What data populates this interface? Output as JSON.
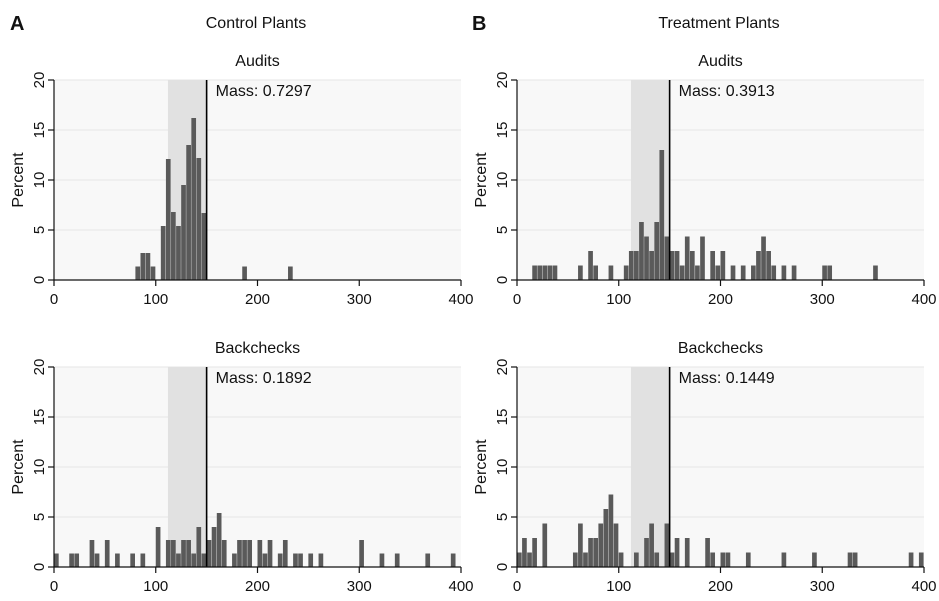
{
  "figure": {
    "columns": [
      {
        "letter": "A",
        "title": "Control Plants"
      },
      {
        "letter": "B",
        "title": "Treatment Plants"
      }
    ]
  },
  "colors": {
    "bar": "#5a5a5a",
    "band": "#e1e1e1",
    "plot_background": "#f8f8f8",
    "grid": "#e6e6e6",
    "axis": "#111111",
    "threshold_line": "#000000"
  },
  "chart_data": [
    {
      "type": "bar",
      "panel": "A",
      "title": "Audits",
      "annotation": "Mass: 0.7297",
      "ylabel": "Percent",
      "xlim": [
        0,
        400
      ],
      "ylim": [
        0,
        20
      ],
      "xticks": [
        0,
        100,
        200,
        300,
        400
      ],
      "yticks": [
        0,
        5,
        10,
        15,
        20
      ],
      "grid": true,
      "shaded_band": [
        112,
        150
      ],
      "threshold": 150,
      "bin_width": 5,
      "bins": [
        {
          "x": 80,
          "y": 1.35
        },
        {
          "x": 85,
          "y": 2.7
        },
        {
          "x": 90,
          "y": 2.7
        },
        {
          "x": 95,
          "y": 1.35
        },
        {
          "x": 105,
          "y": 5.4
        },
        {
          "x": 110,
          "y": 12.1
        },
        {
          "x": 115,
          "y": 6.8
        },
        {
          "x": 120,
          "y": 5.4
        },
        {
          "x": 125,
          "y": 9.5
        },
        {
          "x": 130,
          "y": 13.5
        },
        {
          "x": 135,
          "y": 16.2
        },
        {
          "x": 140,
          "y": 12.2
        },
        {
          "x": 145,
          "y": 6.7
        },
        {
          "x": 185,
          "y": 1.35
        },
        {
          "x": 230,
          "y": 1.35
        }
      ]
    },
    {
      "type": "bar",
      "panel": "B",
      "title": "Audits",
      "annotation": "Mass: 0.3913",
      "ylabel": "Percent",
      "xlim": [
        0,
        400
      ],
      "ylim": [
        0,
        20
      ],
      "xticks": [
        0,
        100,
        200,
        300,
        400
      ],
      "yticks": [
        0,
        5,
        10,
        15,
        20
      ],
      "grid": true,
      "shaded_band": [
        112,
        150
      ],
      "threshold": 150,
      "bin_width": 5,
      "bins": [
        {
          "x": 15,
          "y": 1.45
        },
        {
          "x": 20,
          "y": 1.45
        },
        {
          "x": 25,
          "y": 1.45
        },
        {
          "x": 30,
          "y": 1.45
        },
        {
          "x": 35,
          "y": 1.45
        },
        {
          "x": 60,
          "y": 1.45
        },
        {
          "x": 70,
          "y": 2.9
        },
        {
          "x": 75,
          "y": 1.45
        },
        {
          "x": 90,
          "y": 1.45
        },
        {
          "x": 105,
          "y": 1.45
        },
        {
          "x": 110,
          "y": 2.9
        },
        {
          "x": 115,
          "y": 2.9
        },
        {
          "x": 120,
          "y": 5.8
        },
        {
          "x": 125,
          "y": 4.35
        },
        {
          "x": 130,
          "y": 2.9
        },
        {
          "x": 135,
          "y": 5.8
        },
        {
          "x": 140,
          "y": 13.0
        },
        {
          "x": 145,
          "y": 4.35
        },
        {
          "x": 150,
          "y": 2.9
        },
        {
          "x": 155,
          "y": 2.9
        },
        {
          "x": 160,
          "y": 1.45
        },
        {
          "x": 165,
          "y": 4.35
        },
        {
          "x": 170,
          "y": 2.9
        },
        {
          "x": 175,
          "y": 1.45
        },
        {
          "x": 180,
          "y": 4.35
        },
        {
          "x": 190,
          "y": 2.9
        },
        {
          "x": 195,
          "y": 1.45
        },
        {
          "x": 200,
          "y": 2.9
        },
        {
          "x": 210,
          "y": 1.45
        },
        {
          "x": 220,
          "y": 1.45
        },
        {
          "x": 230,
          "y": 1.45
        },
        {
          "x": 235,
          "y": 2.9
        },
        {
          "x": 240,
          "y": 4.35
        },
        {
          "x": 245,
          "y": 2.9
        },
        {
          "x": 250,
          "y": 1.45
        },
        {
          "x": 260,
          "y": 1.45
        },
        {
          "x": 270,
          "y": 1.45
        },
        {
          "x": 300,
          "y": 1.45
        },
        {
          "x": 305,
          "y": 1.45
        },
        {
          "x": 350,
          "y": 1.45
        }
      ]
    },
    {
      "type": "bar",
      "panel": "A",
      "title": "Backchecks",
      "annotation": "Mass: 0.1892",
      "ylabel": "Percent",
      "xlim": [
        0,
        400
      ],
      "ylim": [
        0,
        20
      ],
      "xticks": [
        0,
        100,
        200,
        300,
        400
      ],
      "yticks": [
        0,
        5,
        10,
        15,
        20
      ],
      "grid": true,
      "shaded_band": [
        112,
        150
      ],
      "threshold": 150,
      "bin_width": 5,
      "bins": [
        {
          "x": 0,
          "y": 1.35
        },
        {
          "x": 15,
          "y": 1.35
        },
        {
          "x": 20,
          "y": 1.35
        },
        {
          "x": 35,
          "y": 2.7
        },
        {
          "x": 40,
          "y": 1.35
        },
        {
          "x": 50,
          "y": 2.7
        },
        {
          "x": 60,
          "y": 1.35
        },
        {
          "x": 75,
          "y": 1.35
        },
        {
          "x": 85,
          "y": 1.35
        },
        {
          "x": 100,
          "y": 4.0
        },
        {
          "x": 110,
          "y": 2.7
        },
        {
          "x": 115,
          "y": 2.7
        },
        {
          "x": 120,
          "y": 1.35
        },
        {
          "x": 125,
          "y": 2.7
        },
        {
          "x": 130,
          "y": 2.7
        },
        {
          "x": 135,
          "y": 1.35
        },
        {
          "x": 140,
          "y": 4.0
        },
        {
          "x": 145,
          "y": 1.35
        },
        {
          "x": 150,
          "y": 2.7
        },
        {
          "x": 155,
          "y": 4.0
        },
        {
          "x": 160,
          "y": 5.4
        },
        {
          "x": 165,
          "y": 2.7
        },
        {
          "x": 175,
          "y": 1.35
        },
        {
          "x": 180,
          "y": 2.7
        },
        {
          "x": 185,
          "y": 2.7
        },
        {
          "x": 190,
          "y": 2.7
        },
        {
          "x": 200,
          "y": 2.7
        },
        {
          "x": 205,
          "y": 1.35
        },
        {
          "x": 210,
          "y": 2.7
        },
        {
          "x": 220,
          "y": 1.35
        },
        {
          "x": 225,
          "y": 2.7
        },
        {
          "x": 235,
          "y": 1.35
        },
        {
          "x": 240,
          "y": 1.35
        },
        {
          "x": 250,
          "y": 1.35
        },
        {
          "x": 260,
          "y": 1.35
        },
        {
          "x": 300,
          "y": 2.7
        },
        {
          "x": 320,
          "y": 1.35
        },
        {
          "x": 335,
          "y": 1.35
        },
        {
          "x": 365,
          "y": 1.35
        },
        {
          "x": 390,
          "y": 1.35
        }
      ]
    },
    {
      "type": "bar",
      "panel": "B",
      "title": "Backchecks",
      "annotation": "Mass: 0.1449",
      "ylabel": "Percent",
      "xlim": [
        0,
        400
      ],
      "ylim": [
        0,
        20
      ],
      "xticks": [
        0,
        100,
        200,
        300,
        400
      ],
      "yticks": [
        0,
        5,
        10,
        15,
        20
      ],
      "grid": true,
      "shaded_band": [
        112,
        150
      ],
      "threshold": 150,
      "bin_width": 5,
      "bins": [
        {
          "x": 0,
          "y": 1.45
        },
        {
          "x": 5,
          "y": 2.9
        },
        {
          "x": 10,
          "y": 1.45
        },
        {
          "x": 15,
          "y": 2.9
        },
        {
          "x": 25,
          "y": 4.35
        },
        {
          "x": 55,
          "y": 1.45
        },
        {
          "x": 60,
          "y": 4.35
        },
        {
          "x": 65,
          "y": 1.45
        },
        {
          "x": 70,
          "y": 2.9
        },
        {
          "x": 75,
          "y": 2.9
        },
        {
          "x": 80,
          "y": 4.35
        },
        {
          "x": 85,
          "y": 5.8
        },
        {
          "x": 90,
          "y": 7.25
        },
        {
          "x": 95,
          "y": 4.35
        },
        {
          "x": 100,
          "y": 1.45
        },
        {
          "x": 115,
          "y": 1.45
        },
        {
          "x": 125,
          "y": 2.9
        },
        {
          "x": 130,
          "y": 4.35
        },
        {
          "x": 135,
          "y": 1.45
        },
        {
          "x": 145,
          "y": 4.35
        },
        {
          "x": 150,
          "y": 1.45
        },
        {
          "x": 155,
          "y": 2.9
        },
        {
          "x": 165,
          "y": 2.9
        },
        {
          "x": 185,
          "y": 2.9
        },
        {
          "x": 190,
          "y": 1.45
        },
        {
          "x": 200,
          "y": 1.45
        },
        {
          "x": 205,
          "y": 1.45
        },
        {
          "x": 225,
          "y": 1.45
        },
        {
          "x": 260,
          "y": 1.45
        },
        {
          "x": 290,
          "y": 1.45
        },
        {
          "x": 325,
          "y": 1.45
        },
        {
          "x": 330,
          "y": 1.45
        },
        {
          "x": 385,
          "y": 1.45
        },
        {
          "x": 395,
          "y": 1.45
        }
      ]
    }
  ]
}
